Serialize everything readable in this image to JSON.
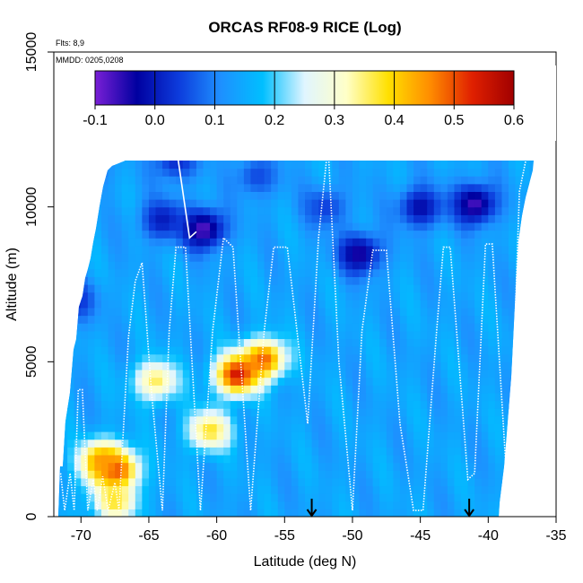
{
  "chart_data": {
    "type": "heatmap",
    "title": "ORCAS RF08-9 RICE (Log)",
    "xlabel": "Latitude (deg N)",
    "ylabel": "Altitude (m)",
    "xlim": [
      -72,
      -35
    ],
    "ylim": [
      0,
      15000
    ],
    "x_ticks": [
      -70,
      -65,
      -60,
      -55,
      -50,
      -45,
      -40,
      -35
    ],
    "x_tick_labels": [
      "-70",
      "-65",
      "-60",
      "-55",
      "-50",
      "-45",
      "-40",
      "-35"
    ],
    "y_ticks": [
      0,
      5000,
      10000,
      15000
    ],
    "y_tick_labels": [
      "0",
      "5000",
      "10000",
      "15000"
    ],
    "annotations": {
      "flights": "Flts: 8,9",
      "dates": "MMDD: 0205,0208"
    },
    "colorbar": {
      "min": -0.1,
      "max": 0.6,
      "ticks": [
        -0.1,
        0.0,
        0.1,
        0.2,
        0.3,
        0.4,
        0.5,
        0.6
      ],
      "tick_labels": [
        "-0.1",
        "0.0",
        "0.1",
        "0.2",
        "0.3",
        "0.4",
        "0.5",
        "0.6"
      ],
      "colors": [
        "#7a1fd6",
        "#0000a0",
        "#0d3cdc",
        "#1e90ff",
        "#00bfff",
        "#e0f5ff",
        "#ffffc8",
        "#ffe000",
        "#ff8c00",
        "#e02000",
        "#a00000"
      ]
    },
    "background_value": 0.14,
    "anomalies": [
      {
        "lat": -67.5,
        "alt": 1500,
        "value": 0.56
      },
      {
        "lat": -68.5,
        "alt": 1800,
        "value": 0.45
      },
      {
        "lat": -56.5,
        "alt": 5100,
        "value": 0.48
      },
      {
        "lat": -58.5,
        "alt": 4600,
        "value": 0.55
      },
      {
        "lat": -60.5,
        "alt": 2800,
        "value": 0.38
      },
      {
        "lat": -64.5,
        "alt": 4400,
        "value": 0.36
      },
      {
        "lat": -67.5,
        "alt": 500,
        "value": 0.38
      },
      {
        "lat": -70,
        "alt": 11200,
        "value": 0.0
      },
      {
        "lat": -63,
        "alt": 11500,
        "value": 0.02
      },
      {
        "lat": -57,
        "alt": 11000,
        "value": 0.05
      },
      {
        "lat": -61,
        "alt": 9300,
        "value": -0.08
      },
      {
        "lat": -64,
        "alt": 9600,
        "value": 0.0
      },
      {
        "lat": -49.5,
        "alt": 8500,
        "value": -0.05
      },
      {
        "lat": -45,
        "alt": 10000,
        "value": -0.02
      },
      {
        "lat": -41,
        "alt": 10100,
        "value": -0.07
      },
      {
        "lat": -70.5,
        "alt": 7000,
        "value": 0.02
      },
      {
        "lat": -52,
        "alt": 10000,
        "value": 0.04
      }
    ],
    "flight_track": [
      [
        -71.5,
        1400
      ],
      [
        -71.2,
        200
      ],
      [
        -70.8,
        1400
      ],
      [
        -70.5,
        200
      ],
      [
        -70.2,
        4100
      ],
      [
        -69.9,
        4100
      ],
      [
        -69.5,
        200
      ],
      [
        -69.1,
        1200
      ],
      [
        -68.8,
        200
      ],
      [
        -68.4,
        1300
      ],
      [
        -68.0,
        200
      ],
      [
        -67.5,
        1100
      ],
      [
        -67.2,
        200
      ],
      [
        -66.5,
        5800
      ],
      [
        -66.0,
        7600
      ],
      [
        -65.5,
        8200
      ],
      [
        -64.8,
        4000
      ],
      [
        -64.0,
        200
      ],
      [
        -63.5,
        6000
      ],
      [
        -63.0,
        8700
      ],
      [
        -62.3,
        8700
      ],
      [
        -61.2,
        200
      ],
      [
        -60.3,
        6000
      ],
      [
        -59.5,
        9000
      ],
      [
        -58.8,
        8700
      ],
      [
        -57.5,
        200
      ],
      [
        -56.5,
        6000
      ],
      [
        -55.8,
        8700
      ],
      [
        -54.8,
        8700
      ],
      [
        -53.3,
        3000
      ],
      [
        -52.5,
        9000
      ],
      [
        -51.8,
        12000
      ],
      [
        -51.0,
        5000
      ],
      [
        -50.0,
        200
      ],
      [
        -49.3,
        6000
      ],
      [
        -48.5,
        8600
      ],
      [
        -47.5,
        8600
      ],
      [
        -46.5,
        3000
      ],
      [
        -45.5,
        200
      ],
      [
        -44.8,
        200
      ],
      [
        -43.8,
        6000
      ],
      [
        -43.3,
        8700
      ],
      [
        -42.8,
        8700
      ],
      [
        -41.5,
        1200
      ],
      [
        -41.0,
        1400
      ],
      [
        -40.2,
        8800
      ],
      [
        -39.7,
        8800
      ],
      [
        -38.5,
        200
      ],
      [
        -37.7,
        10500
      ],
      [
        -37.0,
        12000
      ]
    ],
    "upper_track": [
      [
        -72,
        11800
      ],
      [
        -70.5,
        11900
      ],
      [
        -63,
        12000
      ],
      [
        -62,
        9000
      ],
      [
        -61.5,
        9200
      ]
    ],
    "markers": [
      {
        "lat": -53.0,
        "alt": 0
      },
      {
        "lat": -41.4,
        "alt": 0
      }
    ],
    "grid": false,
    "legend": "none"
  }
}
